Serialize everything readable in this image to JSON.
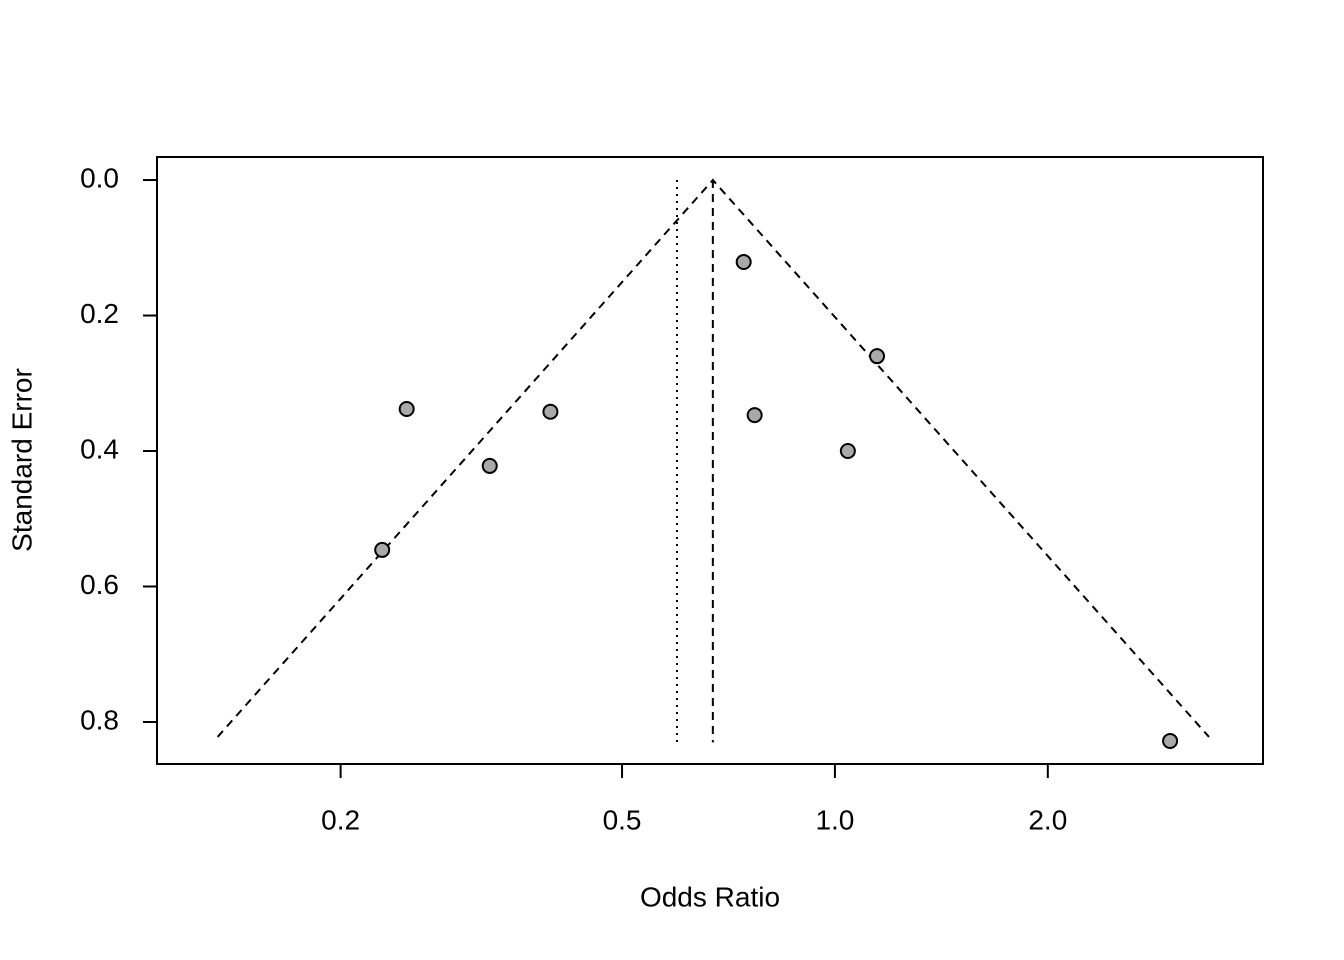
{
  "chart_data": {
    "type": "scatter",
    "x_label": "Odds Ratio",
    "y_label": "Standard Error",
    "x": [
      0.743,
      1.147,
      0.248,
      0.396,
      0.77,
      1.043,
      0.325,
      0.229,
      2.978
    ],
    "values": [
      0.121,
      0.26,
      0.338,
      0.342,
      0.347,
      0.4,
      0.422,
      0.546,
      0.828
    ],
    "color": "#a9a9a9",
    "xlim": [
      0.11,
      4.03
    ],
    "ylim": [
      -0.034,
      0.862
    ],
    "x_log": true,
    "invert_y": true,
    "xticks": [
      0.2,
      0.5,
      {
        "value": 1,
        "label": "1.0"
      },
      {
        "value": 2,
        "label": "2.0"
      }
    ],
    "yticks": [
      {
        "value": 0,
        "label": "0.0"
      },
      0.2,
      0.4,
      0.6,
      0.8
    ],
    "funnel": {
      "x": [
        0.134,
        0.672,
        3.38
      ],
      "y": [
        0.822,
        0,
        0.822
      ],
      "style": "dashed"
    },
    "reference_lines": [
      {
        "x": 0.672,
        "y": [
          0,
          0.83
        ],
        "style": "dashed"
      },
      {
        "x": 0.598,
        "y": [
          0,
          0.83
        ],
        "style": "dotted"
      }
    ]
  }
}
